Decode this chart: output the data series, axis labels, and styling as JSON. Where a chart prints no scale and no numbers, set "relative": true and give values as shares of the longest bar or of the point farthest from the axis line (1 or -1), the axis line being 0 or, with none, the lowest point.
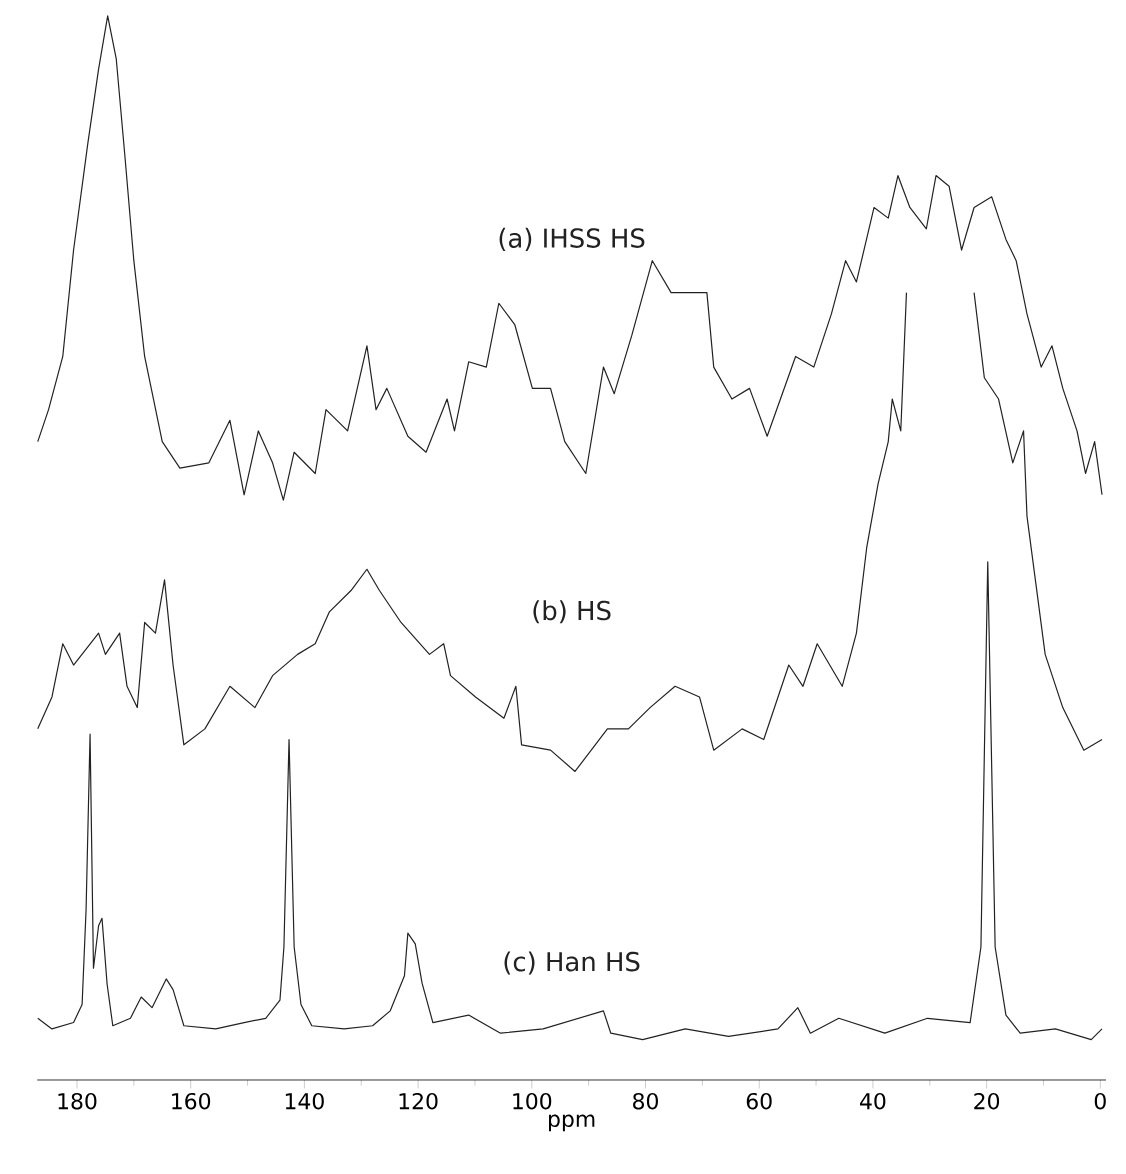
{
  "chart_data": {
    "type": "line",
    "relative": true,
    "xlabel": "ppm",
    "xlim": [
      187,
      -1
    ],
    "xticks": [
      180,
      160,
      140,
      120,
      100,
      80,
      60,
      40,
      20,
      0
    ],
    "tick_labels": "x",
    "series": [
      {
        "name": "(a) IHSS HS",
        "color": "#222222",
        "x": [
          186.9,
          185.0,
          182.5,
          180.6,
          178.1,
          176.2,
          174.6,
          173.1,
          171.6,
          170.0,
          168.1,
          165.0,
          161.9,
          156.8,
          153.1,
          150.6,
          148.1,
          145.6,
          143.7,
          141.8,
          138.1,
          136.2,
          132.4,
          129.0,
          127.4,
          125.5,
          121.8,
          118.6,
          114.9,
          113.6,
          111.1,
          108.0,
          105.8,
          103.0,
          99.9,
          96.7,
          94.2,
          90.5,
          87.4,
          85.5,
          82.4,
          78.8,
          75.5,
          72.3,
          69.2,
          68.0,
          64.8,
          61.7,
          58.6,
          53.6,
          50.4,
          47.3,
          44.8,
          42.9,
          39.8,
          37.3,
          35.6,
          33.5,
          30.6,
          28.9,
          26.6,
          24.4,
          22.2,
          19.1,
          16.6,
          14.8,
          12.9,
          10.4,
          8.5,
          6.6,
          4.1,
          2.6,
          1.0,
          -0.3
        ],
        "values": [
          0.6,
          0.63,
          0.68,
          0.78,
          0.88,
          0.95,
          1.0,
          0.96,
          0.87,
          0.77,
          0.68,
          0.6,
          0.575,
          0.58,
          0.62,
          0.55,
          0.61,
          0.58,
          0.545,
          0.59,
          0.57,
          0.63,
          0.61,
          0.69,
          0.63,
          0.65,
          0.605,
          0.59,
          0.64,
          0.61,
          0.675,
          0.67,
          0.73,
          0.71,
          0.65,
          0.65,
          0.6,
          0.57,
          0.67,
          0.645,
          0.7,
          0.77,
          0.74,
          0.74,
          0.74,
          0.67,
          0.64,
          0.65,
          0.605,
          0.68,
          0.67,
          0.72,
          0.77,
          0.75,
          0.82,
          0.81,
          0.85,
          0.82,
          0.8,
          0.85,
          0.84,
          0.78,
          0.82,
          0.83,
          0.79,
          0.77,
          0.72,
          0.67,
          0.69,
          0.65,
          0.61,
          0.57,
          0.6,
          0.55
        ]
      },
      {
        "name": "(b) HS",
        "color": "#222222",
        "x": [
          186.9,
          184.4,
          182.5,
          180.6,
          176.2,
          175.0,
          172.5,
          171.2,
          169.4,
          168.1,
          166.2,
          164.6,
          163.1,
          161.2,
          157.5,
          153.1,
          148.7,
          145.6,
          141.2,
          138.1,
          135.6,
          131.8,
          129.0,
          126.8,
          123.0,
          118.0,
          115.5,
          114.3,
          109.9,
          104.9,
          102.8,
          101.8,
          96.7,
          92.4,
          86.7,
          83.0,
          79.2,
          74.8,
          70.5,
          68.0,
          63.0,
          59.2,
          54.8,
          52.3,
          49.8,
          45.4,
          42.9,
          41.1,
          39.1,
          37.3,
          36.6,
          35.1,
          34.1,
          28.0,
          22.2,
          20.4,
          17.9,
          15.4,
          13.5,
          12.9,
          9.7,
          6.6,
          2.9,
          -0.3
        ],
        "values": [
          0.33,
          0.36,
          0.41,
          0.39,
          0.42,
          0.4,
          0.42,
          0.37,
          0.35,
          0.43,
          0.42,
          0.47,
          0.39,
          0.315,
          0.33,
          0.37,
          0.35,
          0.38,
          0.4,
          0.41,
          0.44,
          0.46,
          0.48,
          0.46,
          0.43,
          0.4,
          0.41,
          0.38,
          0.36,
          0.34,
          0.37,
          0.315,
          0.31,
          0.29,
          0.33,
          0.33,
          0.35,
          0.37,
          0.36,
          0.31,
          0.33,
          0.32,
          0.39,
          0.37,
          0.41,
          0.37,
          0.42,
          0.5,
          0.56,
          0.6,
          0.64,
          0.61,
          0.74,
          null,
          0.74,
          0.66,
          0.64,
          0.58,
          0.61,
          0.53,
          0.4,
          0.35,
          0.31,
          0.32
        ]
      },
      {
        "name": "(c) Han HS",
        "color": "#222222",
        "x": [
          186.9,
          184.4,
          180.6,
          179.1,
          178.4,
          177.7,
          177.1,
          176.2,
          175.6,
          174.7,
          173.7,
          170.6,
          168.7,
          166.8,
          164.3,
          163.1,
          161.2,
          155.6,
          150.6,
          146.8,
          144.3,
          143.6,
          142.7,
          141.8,
          140.6,
          138.7,
          133.0,
          128.0,
          124.9,
          122.4,
          121.8,
          120.5,
          119.3,
          117.4,
          111.1,
          105.5,
          98.0,
          87.4,
          86.1,
          80.5,
          73.0,
          65.4,
          56.7,
          53.2,
          51.0,
          46.0,
          37.9,
          30.4,
          22.9,
          21.0,
          19.8,
          18.5,
          16.6,
          14.1,
          7.9,
          1.6,
          -0.3
        ],
        "values": [
          0.058,
          0.048,
          0.054,
          0.071,
          0.16,
          0.325,
          0.105,
          0.145,
          0.152,
          0.09,
          0.051,
          0.058,
          0.078,
          0.068,
          0.095,
          0.085,
          0.051,
          0.048,
          0.054,
          0.058,
          0.075,
          0.125,
          0.32,
          0.125,
          0.071,
          0.051,
          0.048,
          0.051,
          0.065,
          0.098,
          0.138,
          0.128,
          0.091,
          0.054,
          0.061,
          0.044,
          0.048,
          0.065,
          0.044,
          0.038,
          0.048,
          0.041,
          0.048,
          0.068,
          0.044,
          0.058,
          0.044,
          0.058,
          0.054,
          0.125,
          0.487,
          0.125,
          0.061,
          0.044,
          0.048,
          0.038,
          0.048
        ]
      }
    ]
  }
}
